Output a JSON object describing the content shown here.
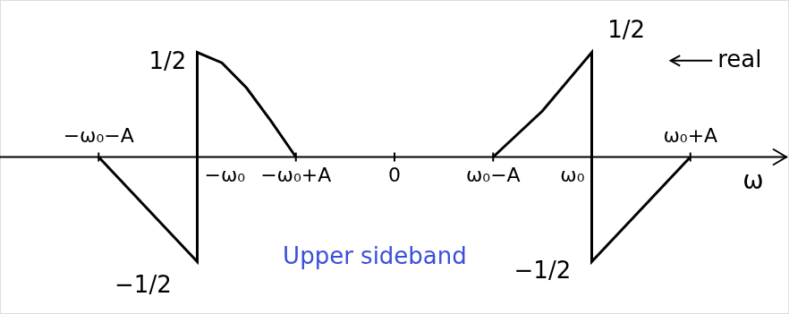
{
  "chart_data": {
    "type": "line",
    "x_label": "ω",
    "xlim": [
      -4,
      4
    ],
    "ylim": [
      -0.75,
      0.75
    ],
    "xticks": [
      {
        "value": -3,
        "label": "−ω₀−A"
      },
      {
        "value": -2,
        "label": "−ω₀"
      },
      {
        "value": -1,
        "label": "−ω₀+A"
      },
      0,
      {
        "value": 1,
        "label": "ω₀−A"
      },
      {
        "value": 2,
        "label": "ω₀"
      },
      {
        "value": 3,
        "label": "ω₀+A"
      }
    ],
    "yticks": [],
    "tick_labels": "x",
    "grid": false,
    "series": [
      {
        "color": "#000000",
        "line_style": "solid",
        "x": [
          -3,
          -2,
          -2,
          -1.75,
          -1.5,
          -1.25,
          -1
        ],
        "values": [
          0,
          -0.5,
          0.5,
          0.45,
          0.33,
          0.17,
          0
        ]
      },
      {
        "color": "#000000",
        "line_style": "solid",
        "x": [
          1,
          1.5,
          2,
          2,
          3
        ],
        "values": [
          0,
          0.22,
          0.5,
          -0.5,
          0
        ]
      }
    ],
    "annotations": [
      {
        "text": "1/2",
        "x": -2.3,
        "y": 0.45,
        "color": "#000000"
      },
      {
        "text": "1/2",
        "x": 2.35,
        "y": 0.6,
        "color": "#000000"
      },
      {
        "text": "−1/2",
        "x": -2.55,
        "y": -0.62,
        "color": "#000000"
      },
      {
        "text": "−1/2",
        "x": 1.5,
        "y": -0.55,
        "color": "#000000"
      },
      {
        "text": "real",
        "x": 3.5,
        "y": 0.46,
        "color": "#000000",
        "arrow_to": [
          2.8,
          0.46
        ]
      },
      {
        "text": "Upper sideband",
        "x": -0.2,
        "y": -0.48,
        "color": "#3a4fd8"
      }
    ]
  }
}
